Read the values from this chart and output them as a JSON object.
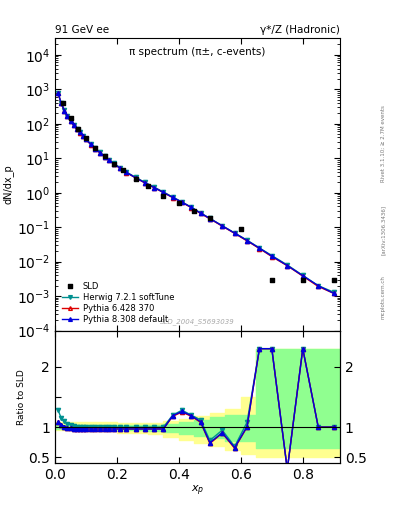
{
  "title_left": "91 GeV ee",
  "title_right": "γ*/Z (Hadronic)",
  "plot_title": "π spectrum (π±, c-events)",
  "ylabel_main": "dN/dx_p",
  "ylabel_ratio": "Ratio to SLD",
  "watermark": "SLD_2004_S5693039",
  "right_label1": "Rivet 3.1.10; ≥ 2.7M events",
  "right_label2": "[arXiv:1306.3436]",
  "right_label3": "mcplots.cern.ch",
  "mc_x": [
    0.01,
    0.02,
    0.03,
    0.04,
    0.05,
    0.06,
    0.07,
    0.08,
    0.09,
    0.1,
    0.115,
    0.13,
    0.145,
    0.16,
    0.175,
    0.19,
    0.21,
    0.23,
    0.26,
    0.29,
    0.32,
    0.35,
    0.38,
    0.41,
    0.44,
    0.47,
    0.5,
    0.54,
    0.58,
    0.62,
    0.66,
    0.7,
    0.75,
    0.8,
    0.85,
    0.9
  ],
  "herwig_y": [
    780,
    400,
    245,
    168,
    124,
    93,
    72,
    57,
    45,
    36,
    26,
    19.5,
    14.8,
    11.5,
    9.0,
    7.1,
    5.3,
    4.0,
    2.8,
    2.0,
    1.45,
    1.05,
    0.75,
    0.54,
    0.38,
    0.26,
    0.18,
    0.11,
    0.068,
    0.042,
    0.025,
    0.015,
    0.008,
    0.004,
    0.002,
    0.0013
  ],
  "pythia6_y": [
    760,
    390,
    240,
    164,
    121,
    91,
    70,
    55,
    44,
    35,
    25,
    18.8,
    14.2,
    11.0,
    8.6,
    6.8,
    5.1,
    3.85,
    2.7,
    1.93,
    1.4,
    1.01,
    0.72,
    0.52,
    0.37,
    0.25,
    0.175,
    0.107,
    0.066,
    0.04,
    0.024,
    0.014,
    0.0076,
    0.0038,
    0.0019,
    0.0012
  ],
  "pythia8_y": [
    765,
    393,
    242,
    165,
    122,
    92,
    71,
    56,
    44.5,
    35.5,
    25.5,
    19.1,
    14.5,
    11.2,
    8.7,
    6.9,
    5.15,
    3.9,
    2.72,
    1.95,
    1.41,
    1.02,
    0.73,
    0.53,
    0.375,
    0.255,
    0.178,
    0.109,
    0.067,
    0.041,
    0.0245,
    0.0145,
    0.0077,
    0.0039,
    0.002,
    0.0012
  ],
  "sld_x": [
    0.025,
    0.05,
    0.075,
    0.1,
    0.13,
    0.16,
    0.19,
    0.22,
    0.26,
    0.3,
    0.35,
    0.4,
    0.45,
    0.5,
    0.6,
    0.7,
    0.8,
    0.9
  ],
  "sld_y": [
    390,
    145,
    72,
    38,
    20,
    11.5,
    7.0,
    4.5,
    2.5,
    1.55,
    0.82,
    0.49,
    0.29,
    0.19,
    0.09,
    0.003,
    0.003,
    0.003
  ],
  "ratio_herwig_y": [
    1.28,
    1.15,
    1.1,
    1.06,
    1.04,
    1.02,
    1.01,
    1.0,
    1.0,
    1.0,
    1.0,
    1.0,
    1.0,
    1.0,
    1.0,
    1.0,
    1.0,
    1.0,
    1.0,
    1.0,
    1.0,
    1.0,
    1.2,
    1.28,
    1.2,
    1.12,
    0.78,
    0.95,
    0.68,
    1.08,
    2.3,
    2.3,
    0.3,
    2.3,
    1.0,
    1.0
  ],
  "ratio_pythia6_y": [
    1.08,
    1.04,
    1.01,
    0.99,
    0.98,
    0.97,
    0.97,
    0.97,
    0.97,
    0.97,
    0.97,
    0.97,
    0.97,
    0.97,
    0.97,
    0.97,
    0.97,
    0.97,
    0.97,
    0.97,
    0.97,
    0.97,
    1.18,
    1.25,
    1.18,
    1.08,
    0.73,
    0.9,
    0.65,
    1.0,
    2.3,
    2.3,
    0.3,
    2.3,
    1.0,
    1.0
  ],
  "ratio_pythia8_y": [
    1.09,
    1.04,
    1.01,
    0.99,
    0.98,
    0.97,
    0.97,
    0.97,
    0.97,
    0.97,
    0.97,
    0.97,
    0.97,
    0.97,
    0.97,
    0.97,
    0.97,
    0.97,
    0.97,
    0.97,
    0.97,
    0.97,
    1.19,
    1.26,
    1.19,
    1.09,
    0.74,
    0.91,
    0.66,
    1.01,
    2.3,
    2.3,
    0.3,
    2.3,
    1.0,
    1.0
  ],
  "band_yellow_edges": [
    0.0,
    0.1,
    0.2,
    0.3,
    0.35,
    0.4,
    0.45,
    0.5,
    0.55,
    0.6,
    0.65,
    0.92
  ],
  "band_yellow_lo": [
    0.95,
    0.93,
    0.91,
    0.88,
    0.84,
    0.79,
    0.74,
    0.69,
    0.62,
    0.55,
    0.5,
    0.5
  ],
  "band_yellow_hi": [
    1.08,
    1.08,
    1.07,
    1.07,
    1.1,
    1.14,
    1.19,
    1.24,
    1.3,
    1.5,
    2.3,
    2.3
  ],
  "band_green_edges": [
    0.0,
    0.1,
    0.2,
    0.3,
    0.35,
    0.4,
    0.45,
    0.5,
    0.55,
    0.65,
    0.92
  ],
  "band_green_lo": [
    0.97,
    0.96,
    0.95,
    0.94,
    0.92,
    0.89,
    0.85,
    0.82,
    0.77,
    0.65,
    0.65
  ],
  "band_green_hi": [
    1.04,
    1.04,
    1.03,
    1.03,
    1.05,
    1.08,
    1.12,
    1.16,
    1.2,
    2.3,
    2.3
  ],
  "sld_color": "black",
  "herwig_color": "#009090",
  "pythia6_color": "#dd0000",
  "pythia8_color": "#0000dd",
  "yellow_color": "#ffff90",
  "green_color": "#90ff90",
  "ylim_main": [
    0.0001,
    30000
  ],
  "ylim_ratio": [
    0.4,
    2.6
  ],
  "xlim": [
    0.0,
    0.92
  ]
}
